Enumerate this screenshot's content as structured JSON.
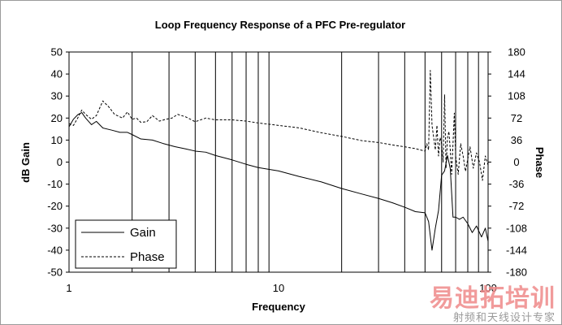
{
  "chart_data": {
    "type": "line",
    "title": "Loop Frequency Response of a PFC Pre-regulator",
    "xlabel": "Frequency",
    "ylabel": "dB Gain",
    "y2label": "Phase",
    "xscale": "log",
    "xlim": [
      1,
      100
    ],
    "ylim": [
      -50,
      50
    ],
    "y2lim": [
      -180,
      180
    ],
    "x_ticks": [
      "1",
      "10",
      "100"
    ],
    "y_ticks": [
      "50",
      "40",
      "30",
      "20",
      "10",
      "0",
      "-10",
      "-20",
      "-30",
      "-40",
      "-50"
    ],
    "y2_ticks": [
      "180",
      "144",
      "108",
      "72",
      "36",
      "0",
      "-36",
      "-72",
      "-108",
      "-144",
      "-180"
    ],
    "grid": "vertical-log",
    "legend_position": "bottom-left",
    "series": [
      {
        "name": "Gain",
        "axis": "left",
        "style": "solid",
        "x": [
          1,
          1.05,
          1.1,
          1.15,
          1.2,
          1.28,
          1.35,
          1.45,
          1.6,
          1.75,
          1.9,
          2.0,
          2.2,
          2.5,
          2.8,
          3.2,
          3.6,
          4.0,
          4.5,
          5.0,
          6.0,
          7.0,
          8.0,
          10.0,
          12.5,
          16.0,
          20.0,
          25.0,
          30.0,
          35.0,
          40.0,
          45.0,
          50.0,
          52.0,
          54.0,
          56.0,
          58.0,
          60.0,
          62.0,
          64.0,
          66.0,
          68.0,
          70.0,
          73.0,
          76.0,
          80.0,
          84.0,
          88.0,
          93.0,
          97.0,
          100.0
        ],
        "values": [
          16,
          19.5,
          21.5,
          22.5,
          20,
          17,
          18.5,
          15.5,
          14.5,
          13.5,
          13.5,
          12.5,
          10.5,
          10,
          8.5,
          7,
          6,
          5,
          4.5,
          3,
          1,
          -1,
          -2.5,
          -4,
          -6.5,
          -9,
          -12,
          -14.5,
          -16.5,
          -18.5,
          -20.5,
          -22.5,
          -23,
          -27,
          -40,
          -30,
          -22,
          -6,
          -4,
          3,
          -3,
          -25,
          -25,
          -26,
          -25,
          -28,
          -32,
          -29,
          -34,
          -30,
          -36
        ]
      },
      {
        "name": "Phase",
        "axis": "right",
        "style": "dashed",
        "x": [
          1,
          1.05,
          1.1,
          1.15,
          1.2,
          1.28,
          1.35,
          1.45,
          1.55,
          1.65,
          1.8,
          1.9,
          2.0,
          2.1,
          2.2,
          2.35,
          2.5,
          2.7,
          2.9,
          3.1,
          3.3,
          3.6,
          4.0,
          4.5,
          5.0,
          6.0,
          7.0,
          8.0,
          10.0,
          12.5,
          16.0,
          20.0,
          25.0,
          30.0,
          35.0,
          40.0,
          45.0,
          50.0,
          51.0,
          52.0,
          53.0,
          54.0,
          55.0,
          56.0,
          57.0,
          58.0,
          59.0,
          60.0,
          61.0,
          62.0,
          63.0,
          64.0,
          65.0,
          66.0,
          67.0,
          68.0,
          69.0,
          70.0,
          72.0,
          74.0,
          76.0,
          78.0,
          80.0,
          82.0,
          85.0,
          88.0,
          91.0,
          94.0,
          97.0,
          100.0
        ],
        "values": [
          63,
          60,
          72,
          85,
          78,
          70,
          76,
          100,
          90,
          78,
          72,
          82,
          70,
          72,
          65,
          66,
          76,
          67,
          70,
          72,
          78,
          74,
          66,
          72,
          69,
          69,
          67,
          64,
          60,
          56,
          48,
          42,
          35,
          32,
          28,
          25,
          22,
          18,
          30,
          20,
          150,
          60,
          40,
          20,
          60,
          10,
          40,
          30,
          0,
          110,
          -10,
          40,
          50,
          20,
          -20,
          30,
          80,
          10,
          -20,
          30,
          10,
          -15,
          5,
          25,
          -10,
          15,
          0,
          -30,
          10,
          -5
        ]
      }
    ]
  },
  "watermark": {
    "main": "易迪拓培训",
    "sub": "射频和天线设计专家"
  }
}
